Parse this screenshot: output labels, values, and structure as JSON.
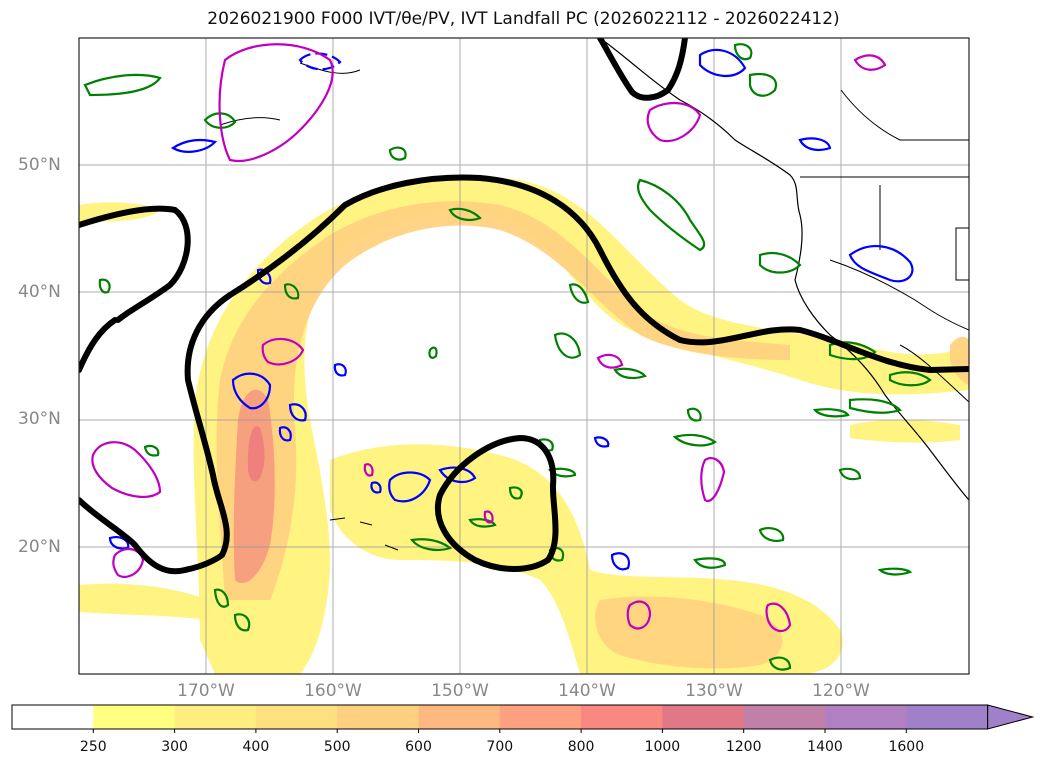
{
  "title": "2026021900 F000 IVT/θe/PV, IVT Landfall PC (2026022112 - 2026022412)",
  "lat_labels": [
    "50°N",
    "40°N",
    "30°N",
    "20°N"
  ],
  "lon_labels": [
    "170°W",
    "160°W",
    "150°W",
    "140°W",
    "130°W",
    "120°W"
  ],
  "colorbar": {
    "ticks": [
      "250",
      "300",
      "400",
      "500",
      "600",
      "700",
      "800",
      "1000",
      "1200",
      "1400",
      "1600"
    ],
    "colors": [
      "#ffffff",
      "#ffff80",
      "#ffee80",
      "#ffe080",
      "#ffd080",
      "#ffb880",
      "#ffa080",
      "#f88880",
      "#e07888",
      "#c080a8",
      "#b080c0",
      "#a080c8"
    ]
  },
  "colors": {
    "ivt_low": "#fff27a",
    "ivt_mid": "#ffd27f",
    "ivt_high": "#f59a80",
    "ivt_peak": "#f07c7c",
    "theta_e_contour": "#000000",
    "pv_green": "#008000",
    "pv_blue": "#0000ff",
    "pv_magenta": "#c000c0",
    "coast": "#000000",
    "grid": "#999999"
  }
}
